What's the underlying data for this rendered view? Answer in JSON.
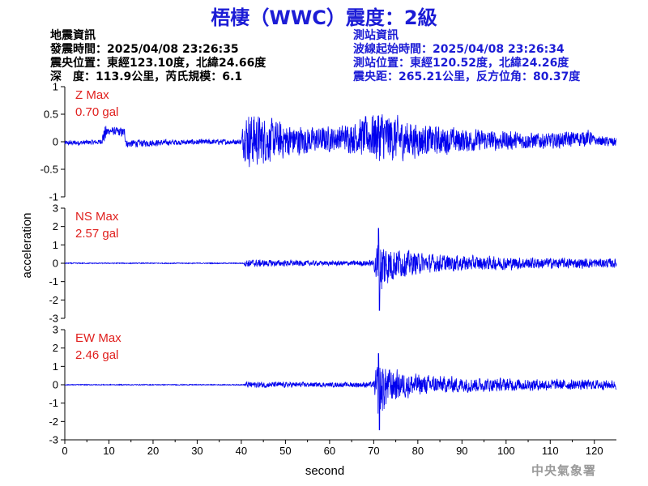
{
  "header": {
    "title": "梧棲（WWC）震度：2級"
  },
  "quake_info": {
    "lines": [
      "地震資訊",
      "發震時間：2025/04/08 23:26:35",
      "震央位置：東經123.10度，北緯24.66度",
      "深　度：113.9公里，芮氏規模：6.1"
    ]
  },
  "station_info": {
    "lines": [
      "測站資訊",
      "波線起始時間：2025/04/08 23:26:34",
      "測站位置：東經120.52度，北緯24.26度",
      "震央距：265.21公里，反方位角：80.37度"
    ]
  },
  "footer": {
    "agency": "中央氣象署"
  },
  "colors": {
    "trace": "#0000ee",
    "max_label": "#e0201e",
    "title": "#1c1cd6"
  },
  "chart_data": {
    "type": "line",
    "xlabel": "second",
    "ylabel": "acceleration",
    "xlim": [
      0,
      125
    ],
    "xticks": [
      0,
      10,
      20,
      30,
      40,
      50,
      60,
      70,
      80,
      90,
      100,
      110,
      120
    ],
    "panels": [
      {
        "name": "Z",
        "label_line1": "Z Max",
        "label_line2": "0.70 gal",
        "ylim": [
          -1,
          1
        ],
        "yticks": [
          1,
          0.5,
          0,
          -0.5,
          -1
        ],
        "envelope": [
          [
            0,
            -0.08,
            0.03
          ],
          [
            8,
            -0.06,
            0.05
          ],
          [
            9.2,
            -0.05,
            0.35
          ],
          [
            10,
            0.12,
            0.28
          ],
          [
            13.5,
            0.05,
            0.28
          ],
          [
            14,
            -0.12,
            0.05
          ],
          [
            25,
            -0.07,
            0.05
          ],
          [
            40,
            -0.06,
            0.06
          ],
          [
            40.5,
            -0.35,
            0.55
          ],
          [
            42,
            -0.55,
            0.65
          ],
          [
            46,
            -0.45,
            0.5
          ],
          [
            50,
            -0.35,
            0.4
          ],
          [
            56,
            -0.25,
            0.3
          ],
          [
            63,
            -0.2,
            0.35
          ],
          [
            69,
            -0.35,
            0.55
          ],
          [
            71,
            -0.5,
            0.7
          ],
          [
            76,
            -0.4,
            0.5
          ],
          [
            82,
            -0.3,
            0.35
          ],
          [
            95,
            -0.2,
            0.25
          ],
          [
            110,
            -0.15,
            0.18
          ],
          [
            119,
            -0.1,
            0.25
          ],
          [
            120,
            -0.08,
            0.12
          ],
          [
            125,
            -0.12,
            0.1
          ]
        ]
      },
      {
        "name": "NS",
        "label_line1": "NS Max",
        "label_line2": "2.57 gal",
        "ylim": [
          -3,
          3
        ],
        "yticks": [
          3,
          2,
          1,
          0,
          -1,
          -2,
          -3
        ],
        "envelope": [
          [
            0,
            -0.03,
            0.03
          ],
          [
            40.5,
            -0.03,
            0.03
          ],
          [
            41,
            -0.25,
            0.25
          ],
          [
            50,
            -0.2,
            0.2
          ],
          [
            60,
            -0.15,
            0.15
          ],
          [
            70,
            -0.2,
            0.2
          ],
          [
            71,
            -2.57,
            1.9
          ],
          [
            73,
            -1.4,
            1.3
          ],
          [
            76,
            -0.9,
            0.9
          ],
          [
            82,
            -0.6,
            0.6
          ],
          [
            95,
            -0.45,
            0.45
          ],
          [
            110,
            -0.35,
            0.35
          ],
          [
            125,
            -0.3,
            0.3
          ]
        ]
      },
      {
        "name": "EW",
        "label_line1": "EW Max",
        "label_line2": "2.46 gal",
        "ylim": [
          -3,
          3
        ],
        "yticks": [
          3,
          2,
          1,
          0,
          -1,
          -2,
          -3
        ],
        "envelope": [
          [
            0,
            -0.03,
            0.03
          ],
          [
            40.5,
            -0.03,
            0.03
          ],
          [
            41,
            -0.2,
            0.2
          ],
          [
            50,
            -0.18,
            0.18
          ],
          [
            60,
            -0.14,
            0.14
          ],
          [
            70,
            -0.2,
            0.2
          ],
          [
            71,
            -2.46,
            1.7
          ],
          [
            73,
            -1.3,
            1.2
          ],
          [
            76,
            -0.9,
            0.85
          ],
          [
            82,
            -0.6,
            0.6
          ],
          [
            95,
            -0.45,
            0.45
          ],
          [
            110,
            -0.35,
            0.35
          ],
          [
            125,
            -0.3,
            0.3
          ]
        ]
      }
    ]
  }
}
